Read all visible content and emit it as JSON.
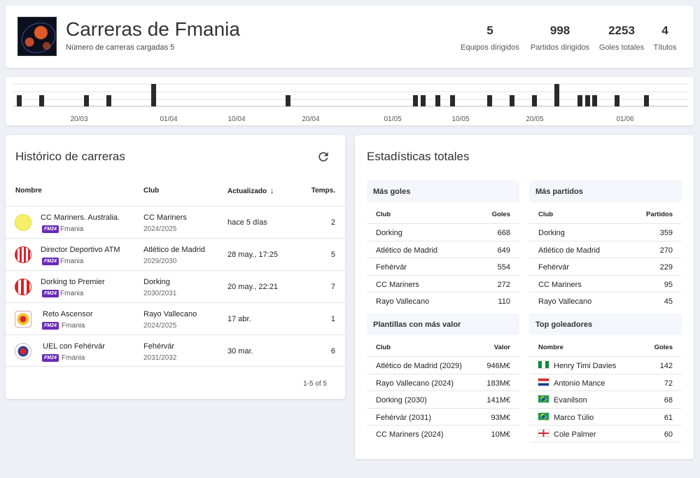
{
  "header": {
    "title": "Carreras de Fmania",
    "subtitle": "Número de carreras cargadas 5",
    "stats": [
      {
        "value": "5",
        "label": "Equipos dirigidos"
      },
      {
        "value": "998",
        "label": "Partidos dirigidos"
      },
      {
        "value": "2253",
        "label": "Goles totales"
      },
      {
        "value": "4",
        "label": "Títulos"
      }
    ]
  },
  "timeline": {
    "ticks": [
      "20/03",
      "01/04",
      "10/04",
      "20/04",
      "01/05",
      "10/05",
      "20/05",
      "01/06"
    ],
    "bar_color": "#2a2a2a"
  },
  "history": {
    "title": "Histórico de carreras",
    "columns": {
      "name": "Nombre",
      "club": "Club",
      "updated": "Actualizado",
      "temps": "Temps."
    },
    "rows": [
      {
        "name": "CC Mariners. Australia.",
        "tag": "FM24",
        "tag_name": "Fmania",
        "club": "CC Mariners",
        "season": "2024/2025",
        "updated": "hace 5 días",
        "temps": "2"
      },
      {
        "name": "Director Deportivo ATM",
        "tag": "FM24",
        "tag_name": "Fmania",
        "club": "Atlético de Madrid",
        "season": "2029/2030",
        "updated": "28 may., 17:25",
        "temps": "5"
      },
      {
        "name": "Dorking to Premier",
        "tag": "FM24",
        "tag_name": "Fmania",
        "club": "Dorking",
        "season": "2030/2031",
        "updated": "20 may., 22:21",
        "temps": "7"
      },
      {
        "name": "Reto Ascensor",
        "tag": "FM24",
        "tag_name": "Fmania",
        "club": "Rayo Vallecano",
        "season": "2024/2025",
        "updated": "17 abr.",
        "temps": "1"
      },
      {
        "name": "UEL con Fehérvár",
        "tag": "FM24",
        "tag_name": "Fmania",
        "club": "Fehérvár",
        "season": "2031/2032",
        "updated": "30 mar.",
        "temps": "6"
      }
    ],
    "pagination": "1-5 of 5"
  },
  "stats": {
    "title": "Estadísticas totales",
    "most_goals": {
      "title": "Más goles",
      "col1": "Club",
      "col2": "Goles",
      "rows": [
        {
          "label": "Dorking",
          "value": "668"
        },
        {
          "label": "Atlético de Madrid",
          "value": "649"
        },
        {
          "label": "Fehérvár",
          "value": "554"
        },
        {
          "label": "CC Mariners",
          "value": "272"
        },
        {
          "label": "Rayo Vallecano",
          "value": "110"
        }
      ]
    },
    "most_matches": {
      "title": "Más partidos",
      "col1": "Club",
      "col2": "Partidos",
      "rows": [
        {
          "label": "Dorking",
          "value": "359"
        },
        {
          "label": "Atlético de Madrid",
          "value": "270"
        },
        {
          "label": "Fehérvár",
          "value": "229"
        },
        {
          "label": "CC Mariners",
          "value": "95"
        },
        {
          "label": "Rayo Vallecano",
          "value": "45"
        }
      ]
    },
    "most_value": {
      "title": "Plantillas con más valor",
      "col1": "Club",
      "col2": "Valor",
      "rows": [
        {
          "label": "Atlético de Madrid (2029)",
          "value": "946M€"
        },
        {
          "label": "Rayo Vallecano (2024)",
          "value": "183M€"
        },
        {
          "label": "Dorking (2030)",
          "value": "141M€"
        },
        {
          "label": "Fehérvár (2031)",
          "value": "93M€"
        },
        {
          "label": "CC Mariners (2024)",
          "value": "10M€"
        }
      ]
    },
    "top_scorers": {
      "title": "Top goleadores",
      "col1": "Nombre",
      "col2": "Goles",
      "rows": [
        {
          "label": "Henry Timi Davies",
          "value": "142",
          "flag": "nigeria-flag-icon"
        },
        {
          "label": "Antonio Mance",
          "value": "72",
          "flag": "croatia-flag-icon"
        },
        {
          "label": "Evanilson",
          "value": "68",
          "flag": "brazil-flag-icon"
        },
        {
          "label": "Marco Túlio",
          "value": "61",
          "flag": "brazil-flag-icon"
        },
        {
          "label": "Cole Palmer",
          "value": "60",
          "flag": "england-flag-icon"
        }
      ]
    }
  },
  "colors": {
    "tag_purple": "#6a2bb8",
    "box_header_bg": "#f3f6fa"
  }
}
